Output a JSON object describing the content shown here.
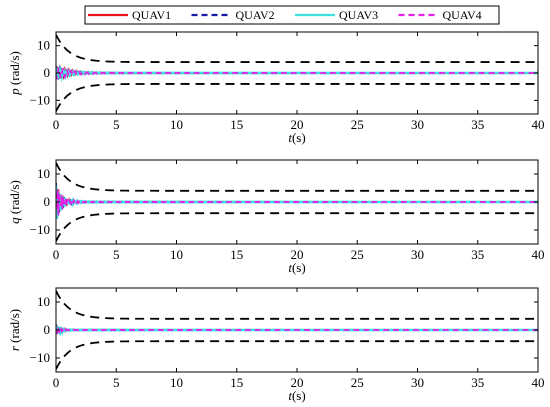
{
  "legend": {
    "placement": "top",
    "entries": [
      {
        "label": "QUAV1",
        "color": "#e8141b",
        "dash": "solid"
      },
      {
        "label": "QUAV2",
        "color": "#1a1aa8",
        "dash": "dash"
      },
      {
        "label": "QUAV3",
        "color": "#3fe0e0",
        "dash": "solid"
      },
      {
        "label": "QUAV4",
        "color": "#e61ee6",
        "dash": "dash"
      }
    ]
  },
  "chart_data": [
    {
      "type": "line",
      "ylabel_var": "p",
      "ylabel_unit": "(rad/s)",
      "xlabel_var": "t",
      "xlabel_unit": "(s)",
      "xlim": [
        0,
        40
      ],
      "ylim": [
        -15,
        15
      ],
      "xticks": [
        0,
        5,
        10,
        15,
        20,
        25,
        30,
        35,
        40
      ],
      "yticks": [
        -10,
        0,
        10
      ],
      "grid": false,
      "bounds": {
        "style": "dashed",
        "color": "#000000",
        "start": 14,
        "final": 4,
        "decay": 0.9
      },
      "series_shape": {
        "amp": 2.5,
        "decay": 0.8,
        "freq": 1.0,
        "noise": 0.12
      }
    },
    {
      "type": "line",
      "ylabel_var": "q",
      "ylabel_unit": "(rad/s)",
      "xlabel_var": "t",
      "xlabel_unit": "(s)",
      "xlim": [
        0,
        40
      ],
      "ylim": [
        -15,
        15
      ],
      "xticks": [
        0,
        5,
        10,
        15,
        20,
        25,
        30,
        35,
        40
      ],
      "yticks": [
        -10,
        0,
        10
      ],
      "grid": false,
      "bounds": {
        "style": "dashed",
        "color": "#000000",
        "start": 14,
        "final": 4,
        "decay": 0.9
      },
      "series_shape": {
        "amp": 7.0,
        "decay": 2.0,
        "freq": 2.0,
        "noise": 0.15
      }
    },
    {
      "type": "line",
      "ylabel_var": "r",
      "ylabel_unit": "(rad/s)",
      "xlabel_var": "t",
      "xlabel_unit": "(s)",
      "xlim": [
        0,
        40
      ],
      "ylim": [
        -15,
        15
      ],
      "xticks": [
        0,
        5,
        10,
        15,
        20,
        25,
        30,
        35,
        40
      ],
      "yticks": [
        -10,
        0,
        10
      ],
      "grid": false,
      "bounds": {
        "style": "dashed",
        "color": "#000000",
        "start": 14,
        "final": 4,
        "decay": 0.9
      },
      "series_shape": {
        "amp": 2.0,
        "decay": 2.5,
        "freq": 1.5,
        "noise": 0.1
      }
    }
  ]
}
